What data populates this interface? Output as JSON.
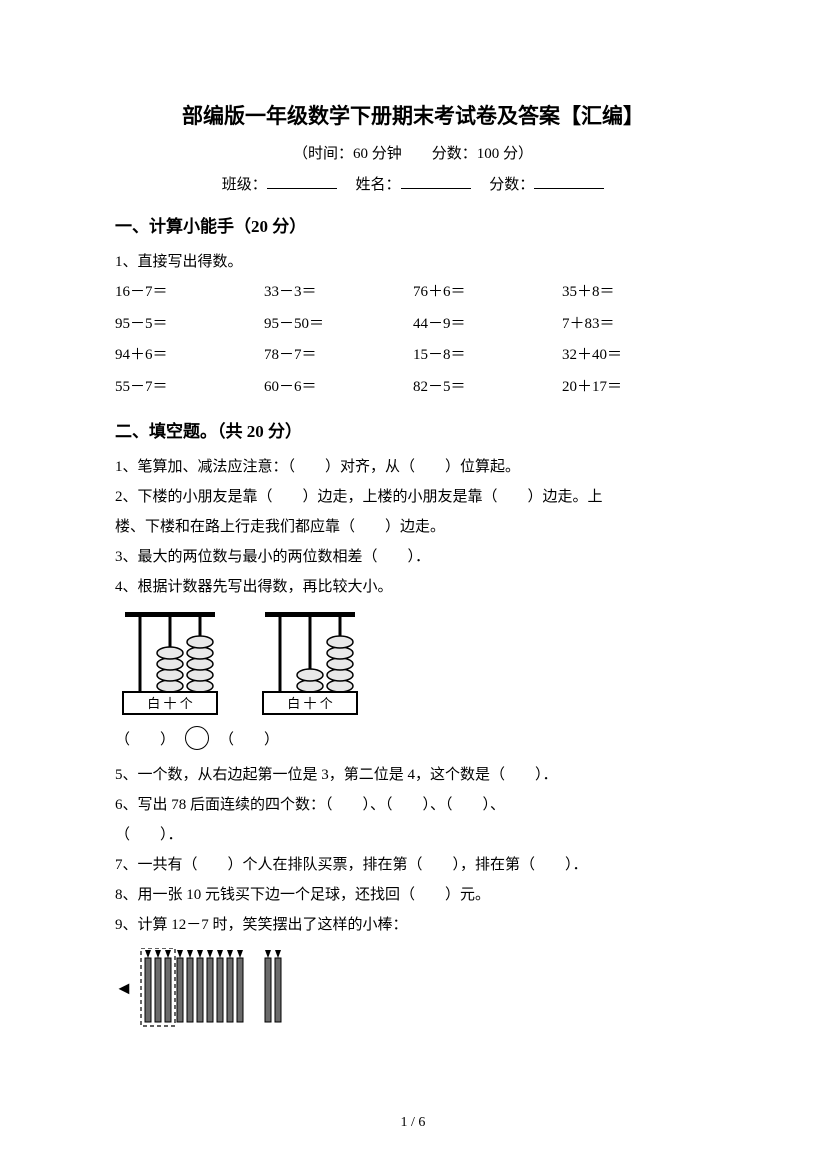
{
  "title": "部编版一年级数学下册期末考试卷及答案【汇编】",
  "subtitle": "（时间：60 分钟　　分数：100 分）",
  "info": {
    "class_label": "班级：",
    "name_label": "姓名：",
    "score_label": "分数："
  },
  "section1": {
    "header": "一、计算小能手（20 分）",
    "q1_label": "1、直接写出得数。",
    "rows": [
      [
        "16－7＝",
        "33－3＝",
        "76＋6＝",
        "35＋8＝"
      ],
      [
        "95－5＝",
        "95－50＝",
        "44－9＝",
        "7＋83＝"
      ],
      [
        "94＋6＝",
        "78－7＝",
        "15－8＝",
        "32＋40＝"
      ],
      [
        "55－7＝",
        "60－6＝",
        "82－5＝",
        "20＋17＝"
      ]
    ]
  },
  "section2": {
    "header": "二、填空题。（共 20 分）",
    "q1": "1、笔算加、减法应注意：（　　）对齐，从（　　）位算起。",
    "q2a": "2、下楼的小朋友是靠（　　）边走，上楼的小朋友是靠（　　）边走。上",
    "q2b": "楼、下楼和在路上行走我们都应靠（　　）边走。",
    "q3": "3、最大的两位数与最小的两位数相差（　　）．",
    "q4": "4、根据计数器先写出得数，再比较大小。",
    "q5": "5、一个数，从右边起第一位是 3，第二位是 4，这个数是（　　）．",
    "q6a": "6、写出 78 后面连续的四个数：（　　）、（　　）、（　　）、",
    "q6b": "（　　）．",
    "q7": "7、一共有（　　）个人在排队买票，排在第（　　），排在第（　　）．",
    "q8": "8、用一张 10 元钱买下边一个足球，还找回（　　）元。",
    "q9": "9、计算 12－7 时，笑笑摆出了这样的小棒：",
    "compare_left": "（　　）",
    "compare_right": "（　　）",
    "abacus_labels": "白 十 个"
  },
  "footer": "1 / 6",
  "colors": {
    "text": "#000000",
    "bg": "#ffffff",
    "stick_fill": "#6a6a6a",
    "stick_stroke": "#000000"
  },
  "abacus": {
    "left": {
      "beads": [
        0,
        4,
        5
      ]
    },
    "right": {
      "beads": [
        0,
        2,
        5
      ]
    },
    "rod_color": "#000000",
    "bead_fill": "#e8e8e8",
    "bead_stroke": "#000000"
  },
  "sticks": {
    "dashed_group_count": 3,
    "mid_group_count": 7,
    "right_group_count": 2,
    "stick_width": 6,
    "stick_height": 64,
    "tip_height": 8
  }
}
